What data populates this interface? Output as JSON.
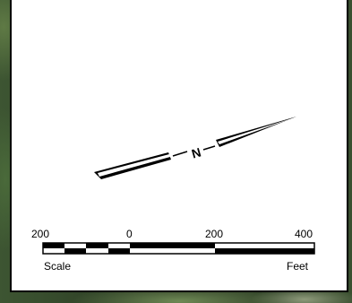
{
  "scale": {
    "tick_labels": [
      "200",
      "0",
      "200",
      "400"
    ],
    "left_caption": "Scale",
    "right_caption": "Feet"
  },
  "north_arrow": {
    "letter": "N"
  }
}
